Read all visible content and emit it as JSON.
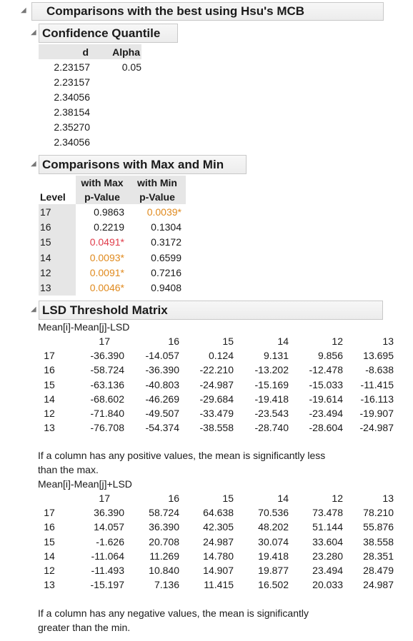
{
  "report": {
    "title": "Comparisons with the best using Hsu's MCB"
  },
  "confidence_quantile": {
    "title": "Confidence Quantile",
    "columns": [
      "d",
      "Alpha"
    ],
    "d_values": [
      "2.23157",
      "2.23157",
      "2.34056",
      "2.38154",
      "2.35270",
      "2.34056"
    ],
    "alpha": "0.05"
  },
  "max_min": {
    "title": "Comparisons with Max and Min",
    "col_level": "Level",
    "col_max_top": "with Max",
    "col_max_bottom": "p-Value",
    "col_min_top": "with Min",
    "col_min_bottom": "p-Value",
    "rows": [
      {
        "level": "17",
        "max": "0.9863",
        "max_color": "normal",
        "min": "0.0039*",
        "min_color": "orange"
      },
      {
        "level": "16",
        "max": "0.2219",
        "max_color": "normal",
        "min": "0.1304",
        "min_color": "normal"
      },
      {
        "level": "15",
        "max": "0.0491*",
        "max_color": "red",
        "min": "0.3172",
        "min_color": "normal"
      },
      {
        "level": "14",
        "max": "0.0093*",
        "max_color": "orange",
        "min": "0.6599",
        "min_color": "normal"
      },
      {
        "level": "12",
        "max": "0.0091*",
        "max_color": "orange",
        "min": "0.7216",
        "min_color": "normal"
      },
      {
        "level": "13",
        "max": "0.0046*",
        "max_color": "orange",
        "min": "0.9408",
        "min_color": "normal"
      }
    ]
  },
  "lsd": {
    "title": "LSD Threshold Matrix",
    "m1_caption": "Mean[i]-Mean[j]-LSD",
    "m2_caption": "Mean[i]-Mean[j]+LSD",
    "columns": [
      "17",
      "16",
      "15",
      "14",
      "12",
      "13"
    ],
    "matrix1": [
      [
        "17",
        "-36.390",
        "-14.057",
        "0.124",
        "9.131",
        "9.856",
        "13.695"
      ],
      [
        "16",
        "-58.724",
        "-36.390",
        "-22.210",
        "-13.202",
        "-12.478",
        "-8.638"
      ],
      [
        "15",
        "-63.136",
        "-40.803",
        "-24.987",
        "-15.169",
        "-15.033",
        "-11.415"
      ],
      [
        "14",
        "-68.602",
        "-46.269",
        "-29.684",
        "-19.418",
        "-19.614",
        "-16.113"
      ],
      [
        "12",
        "-71.840",
        "-49.507",
        "-33.479",
        "-23.543",
        "-23.494",
        "-19.907"
      ],
      [
        "13",
        "-76.708",
        "-54.374",
        "-38.558",
        "-28.740",
        "-28.604",
        "-24.987"
      ]
    ],
    "note1_line1": "If a column has any positive values, the mean is significantly less",
    "note1_line2": "than the max.",
    "matrix2": [
      [
        "17",
        "36.390",
        "58.724",
        "64.638",
        "70.536",
        "73.478",
        "78.210"
      ],
      [
        "16",
        "14.057",
        "36.390",
        "42.305",
        "48.202",
        "51.144",
        "55.876"
      ],
      [
        "15",
        "-1.626",
        "20.708",
        "24.987",
        "30.074",
        "33.604",
        "38.558"
      ],
      [
        "14",
        "-11.064",
        "11.269",
        "14.780",
        "19.418",
        "23.280",
        "28.351"
      ],
      [
        "12",
        "-11.493",
        "10.840",
        "14.907",
        "19.877",
        "23.494",
        "28.479"
      ],
      [
        "13",
        "-15.197",
        "7.136",
        "11.415",
        "16.502",
        "20.033",
        "24.987"
      ]
    ],
    "note2_line1": "If a column has any negative values, the mean is significantly",
    "note2_line2": "greater than the min."
  }
}
